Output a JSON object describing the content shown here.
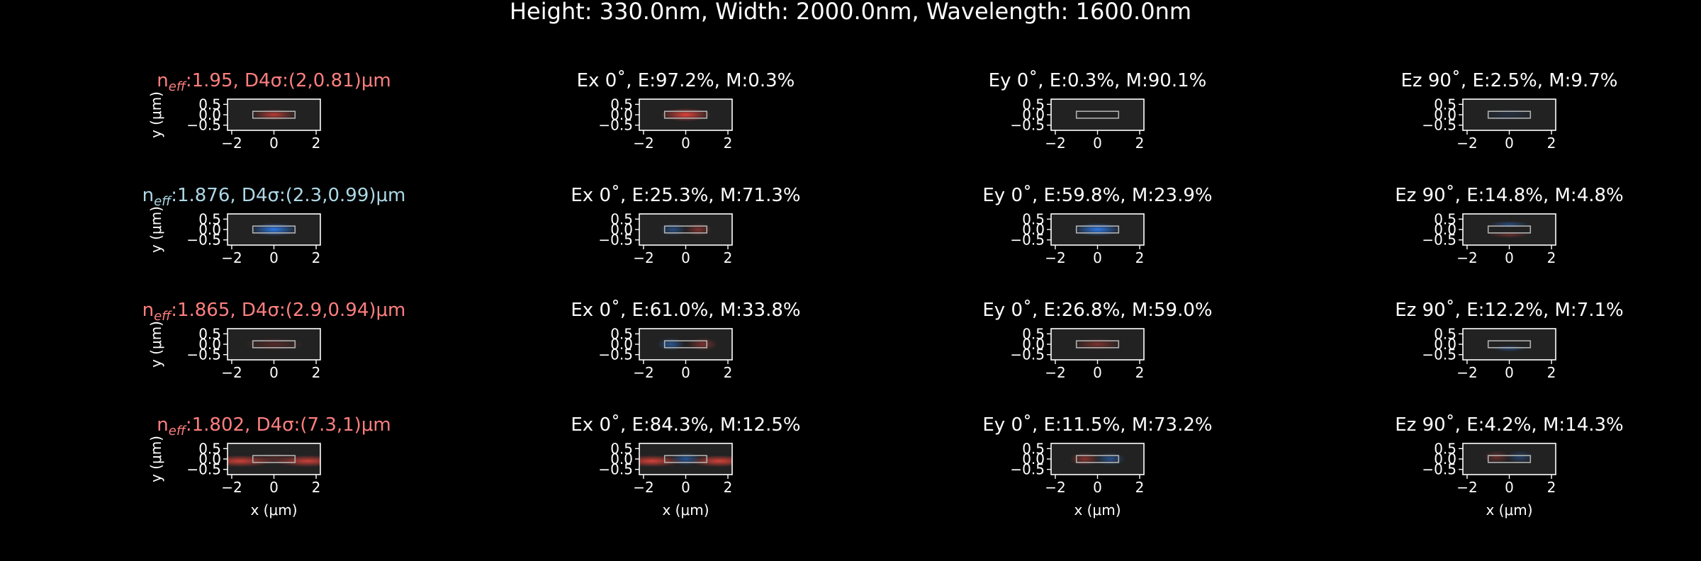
{
  "figure_title": "Height: 330.0nm, Width: 2000.0nm, Wavelength: 1600.0nm",
  "colors": {
    "background": "#000000",
    "axes_face": "#222222",
    "axis": "#ffffff",
    "label_red": "#ff7f7f",
    "label_blue": "#add8e6",
    "field_positive": "#e8453c",
    "field_negative": "#2f7ff0",
    "waveguide_outline": "#b0b0b0"
  },
  "chart_data": {
    "type": "heatmap",
    "layout": "4x4 grid of field-profile panels",
    "xlabel": "x (μm)",
    "ylabel": "y (μm)",
    "xlim": [
      -2.2,
      2.2
    ],
    "ylim": [
      -0.75,
      0.75
    ],
    "xticks": [
      -2,
      0,
      2
    ],
    "yticks": [
      0.5,
      0.0,
      -0.5
    ],
    "xtick_labels": [
      "−2",
      "0",
      "2"
    ],
    "ytick_labels": [
      "0.5",
      "0.0",
      "−0.5"
    ],
    "waveguide": {
      "x": [
        -1.0,
        1.0
      ],
      "y": [
        -0.165,
        0.165
      ]
    },
    "rows": [
      {
        "mode_label": {
          "prefix": "n",
          "sub": "eff",
          "suffix": ":1.95, D4σ:(2,0.81)μm",
          "color": "red"
        },
        "panels": [
          {
            "title": "",
            "intensity": [
              {
                "sign": 1,
                "cx": 0,
                "cy": 0,
                "sx": 0.65,
                "sy": 0.17,
                "a": 0.75
              }
            ]
          },
          {
            "title": "Ex 0˚, E:97.2%, M:0.3%",
            "intensity": [
              {
                "sign": 1,
                "cx": 0,
                "cy": 0,
                "sx": 0.75,
                "sy": 0.2,
                "a": 0.95
              }
            ]
          },
          {
            "title": "Ey 0˚, E:0.3%, M:90.1%",
            "intensity": []
          },
          {
            "title": "Ez 90˚, E:2.5%, M:9.7%",
            "intensity": [
              {
                "sign": -1,
                "cx": 0,
                "cy": 0,
                "sx": 0.8,
                "sy": 0.2,
                "a": 0.15
              }
            ]
          }
        ]
      },
      {
        "mode_label": {
          "prefix": "n",
          "sub": "eff",
          "suffix": ":1.876, D4σ:(2.3,0.99)μm",
          "color": "blue"
        },
        "panels": [
          {
            "title": "",
            "intensity": [
              {
                "sign": -1,
                "cx": 0,
                "cy": 0,
                "sx": 0.7,
                "sy": 0.2,
                "a": 0.95
              }
            ]
          },
          {
            "title": "Ex 0˚, E:25.3%, M:71.3%",
            "intensity": [
              {
                "sign": -1,
                "cx": -0.6,
                "cy": 0,
                "sx": 0.4,
                "sy": 0.2,
                "a": 0.45
              },
              {
                "sign": 1,
                "cx": 0.6,
                "cy": 0,
                "sx": 0.4,
                "sy": 0.2,
                "a": 0.45
              }
            ]
          },
          {
            "title": "Ey 0˚, E:59.8%, M:23.9%",
            "intensity": [
              {
                "sign": -1,
                "cx": 0,
                "cy": 0,
                "sx": 0.7,
                "sy": 0.2,
                "a": 0.95
              }
            ]
          },
          {
            "title": "Ez 90˚, E:14.8%, M:4.8%",
            "intensity": [
              {
                "sign": -1,
                "cx": 0,
                "cy": 0.25,
                "sx": 0.6,
                "sy": 0.1,
                "a": 0.45
              },
              {
                "sign": 1,
                "cx": 0,
                "cy": -0.25,
                "sx": 0.6,
                "sy": 0.1,
                "a": 0.35
              }
            ]
          }
        ]
      },
      {
        "mode_label": {
          "prefix": "n",
          "sub": "eff",
          "suffix": ":1.865, D4σ:(2.9,0.94)μm",
          "color": "red"
        },
        "panels": [
          {
            "title": "",
            "intensity": [
              {
                "sign": 1,
                "cx": 0,
                "cy": 0,
                "sx": 0.9,
                "sy": 0.2,
                "a": 0.25
              }
            ]
          },
          {
            "title": "Ex 0˚, E:61.0%, M:33.8%",
            "intensity": [
              {
                "sign": -1,
                "cx": -0.7,
                "cy": 0,
                "sx": 0.4,
                "sy": 0.2,
                "a": 0.55
              },
              {
                "sign": 1,
                "cx": 0.8,
                "cy": 0,
                "sx": 0.45,
                "sy": 0.2,
                "a": 0.45
              }
            ]
          },
          {
            "title": "Ey 0˚, E:26.8%, M:59.0%",
            "intensity": [
              {
                "sign": 1,
                "cx": 0,
                "cy": 0,
                "sx": 0.7,
                "sy": 0.18,
                "a": 0.45
              }
            ]
          },
          {
            "title": "Ez 90˚, E:12.2%, M:7.1%",
            "intensity": [
              {
                "sign": -1,
                "cx": 0,
                "cy": -0.2,
                "sx": 0.5,
                "sy": 0.1,
                "a": 0.4
              }
            ]
          }
        ]
      },
      {
        "mode_label": {
          "prefix": "n",
          "sub": "eff",
          "suffix": ":1.802, D4σ:(7.3,1)μm",
          "color": "red"
        },
        "panels": [
          {
            "title": "",
            "intensity": [
              {
                "sign": 1,
                "cx": -1.6,
                "cy": -0.1,
                "sx": 1.0,
                "sy": 0.18,
                "a": 0.85
              },
              {
                "sign": 1,
                "cx": 1.6,
                "cy": -0.1,
                "sx": 1.0,
                "sy": 0.18,
                "a": 0.85
              },
              {
                "sign": 1,
                "cx": 0,
                "cy": 0,
                "sx": 0.6,
                "sy": 0.18,
                "a": 0.25
              }
            ]
          },
          {
            "title": "Ex 0˚, E:84.3%, M:12.5%",
            "intensity": [
              {
                "sign": 1,
                "cx": -1.6,
                "cy": -0.1,
                "sx": 0.9,
                "sy": 0.18,
                "a": 0.9
              },
              {
                "sign": 1,
                "cx": 1.6,
                "cy": -0.1,
                "sx": 0.9,
                "sy": 0.18,
                "a": 0.9
              },
              {
                "sign": -1,
                "cx": 0,
                "cy": 0,
                "sx": 0.45,
                "sy": 0.2,
                "a": 0.55
              }
            ]
          },
          {
            "title": "Ey 0˚, E:11.5%, M:73.2%",
            "intensity": [
              {
                "sign": 1,
                "cx": -0.6,
                "cy": 0,
                "sx": 0.45,
                "sy": 0.2,
                "a": 0.5
              },
              {
                "sign": -1,
                "cx": 0.6,
                "cy": 0,
                "sx": 0.45,
                "sy": 0.2,
                "a": 0.5
              }
            ]
          },
          {
            "title": "Ez 90˚, E:4.2%, M:14.3%",
            "intensity": [
              {
                "sign": 1,
                "cx": -0.6,
                "cy": 0.1,
                "sx": 0.4,
                "sy": 0.2,
                "a": 0.35
              },
              {
                "sign": -1,
                "cx": 0.5,
                "cy": 0.1,
                "sx": 0.4,
                "sy": 0.2,
                "a": 0.35
              }
            ]
          }
        ]
      }
    ]
  }
}
